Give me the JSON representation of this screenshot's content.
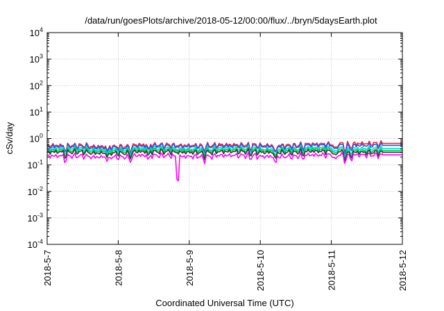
{
  "chart_data": {
    "type": "line",
    "title": "/data/run/goesPlots/archive/2018-05-12/00:00/flux/../bryn/5daysEarth.plot",
    "xlabel": "Coordinated Universal Time (UTC)",
    "ylabel": "cSv/day",
    "yscale": "log",
    "ylim": [
      0.0001,
      10000
    ],
    "y_ticks": [
      {
        "value": 0.0001,
        "base": "10",
        "exp": "-4"
      },
      {
        "value": 0.001,
        "base": "10",
        "exp": "-3"
      },
      {
        "value": 0.01,
        "base": "10",
        "exp": "-2"
      },
      {
        "value": 0.1,
        "base": "10",
        "exp": "-1"
      },
      {
        "value": 1,
        "base": "10",
        "exp": "0"
      },
      {
        "value": 10,
        "base": "10",
        "exp": "1"
      },
      {
        "value": 100,
        "base": "10",
        "exp": "2"
      },
      {
        "value": 1000,
        "base": "10",
        "exp": "3"
      },
      {
        "value": 10000,
        "base": "10",
        "exp": "4"
      }
    ],
    "xlim": [
      "2018-05-07",
      "2018-05-12"
    ],
    "x_ticks": [
      "2018-5-7",
      "2018-5-8",
      "2018-5-9",
      "2018-5-10",
      "2018-5-11",
      "2018-5-12"
    ],
    "grid": true,
    "series": [
      {
        "color": "#ff2020",
        "base": [
          0.55,
          0.5,
          0.58,
          0.55,
          0.58,
          0.55,
          0.62,
          0.65
        ],
        "end": 0.65
      },
      {
        "color": "#2255ff",
        "base": [
          0.5,
          0.45,
          0.52,
          0.5,
          0.52,
          0.5,
          0.56,
          0.55
        ],
        "end": 0.55
      },
      {
        "color": "#00dddd",
        "base": [
          0.42,
          0.38,
          0.43,
          0.4,
          0.43,
          0.4,
          0.45,
          0.42
        ],
        "end": 0.42
      },
      {
        "color": "#00cc44",
        "base": [
          0.36,
          0.33,
          0.37,
          0.35,
          0.37,
          0.35,
          0.39,
          0.35
        ],
        "end": 0.35
      },
      {
        "color": "#333333",
        "base": [
          0.31,
          0.28,
          0.32,
          0.3,
          0.32,
          0.3,
          0.33,
          0.3
        ],
        "end": 0.3
      },
      {
        "color": "#ff00ff",
        "base": [
          0.22,
          0.2,
          0.23,
          0.21,
          0.23,
          0.21,
          0.24,
          0.24
        ],
        "end": 0.24
      }
    ],
    "dips": [
      {
        "day": 0.25,
        "factor": 0.7
      },
      {
        "day": 0.85,
        "factor": 0.75
      },
      {
        "day": 1.18,
        "factor": 0.7
      },
      {
        "day": 1.42,
        "factor": 0.75
      },
      {
        "day": 1.84,
        "factor": 0.14,
        "magenta_only": true
      },
      {
        "day": 2.2,
        "factor": 0.75
      },
      {
        "day": 2.86,
        "factor": 0.8
      },
      {
        "day": 3.22,
        "factor": 0.6
      },
      {
        "day": 3.6,
        "factor": 0.75
      },
      {
        "day": 4.05,
        "factor": 0.65
      },
      {
        "day": 4.2,
        "factor": 0.6
      },
      {
        "day": 4.28,
        "factor": 0.7
      }
    ],
    "data_end_day": 4.72
  }
}
